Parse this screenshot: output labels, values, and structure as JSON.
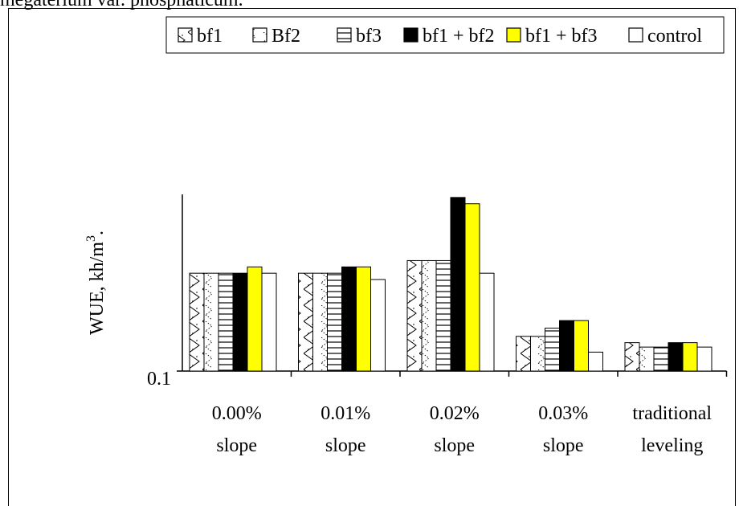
{
  "header_text": "megaterium var. phosphaticum.",
  "chart_data": {
    "type": "bar",
    "ylabel": "WUE, kh/m",
    "ylabel_superscript": "3",
    "ylabel_suffix": ".",
    "y_tick_labels": [
      "0.1"
    ],
    "y_base": 0.1,
    "categories": [
      {
        "line1": "0.00%",
        "line2": "slope"
      },
      {
        "line1": "0.01%",
        "line2": "slope"
      },
      {
        "line1": "0.02%",
        "line2": "slope"
      },
      {
        "line1": "0.03%",
        "line2": "slope"
      },
      {
        "line1": "traditional",
        "line2": "leveling"
      }
    ],
    "series": [
      {
        "name": "bf1",
        "pattern": "zigzag",
        "values": [
          1.65,
          1.65,
          1.85,
          0.65,
          0.55
        ]
      },
      {
        "name": "Bf2",
        "pattern": "dots",
        "values": [
          1.65,
          1.65,
          1.85,
          0.65,
          0.48
        ]
      },
      {
        "name": "bf3",
        "pattern": "hlines",
        "values": [
          1.65,
          1.65,
          1.85,
          0.78,
          0.48
        ]
      },
      {
        "name": "bf1 + bf2",
        "color": "#000000",
        "values": [
          1.65,
          1.75,
          2.85,
          0.9,
          0.55
        ]
      },
      {
        "name": "bf1 + bf3",
        "color": "#ffff00",
        "values": [
          1.75,
          1.75,
          2.75,
          0.9,
          0.55
        ]
      },
      {
        "name": "control",
        "color": "#ffffff",
        "values": [
          1.65,
          1.55,
          1.65,
          0.4,
          0.48
        ]
      }
    ],
    "legend_position": "top-right",
    "grid": false
  }
}
